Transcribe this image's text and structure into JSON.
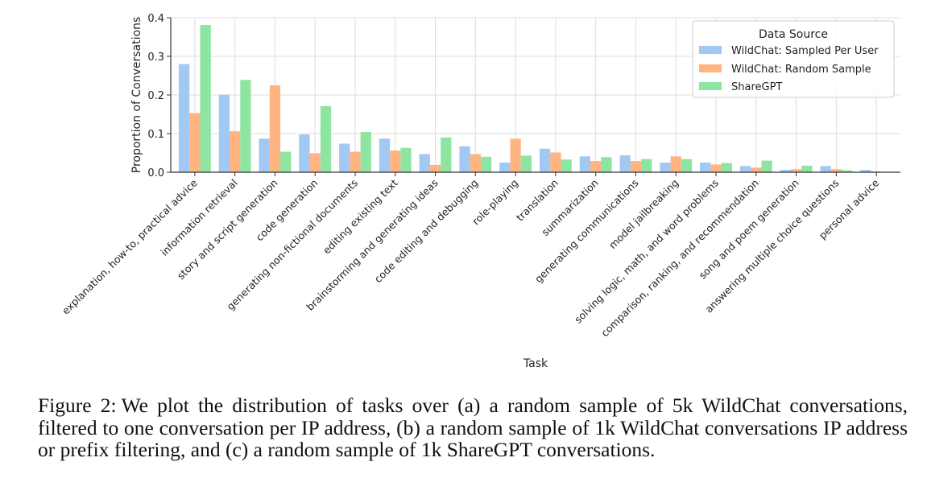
{
  "chart_data": {
    "type": "bar",
    "title": "",
    "xlabel": "Task",
    "ylabel": "Proportion of Conversations",
    "ylim": [
      0,
      0.4
    ],
    "yticks": [
      "0.0",
      "0.1",
      "0.2",
      "0.3",
      "0.4"
    ],
    "grid": true,
    "legend_title": "Data Source",
    "legend_position": "top-right",
    "categories": [
      "explanation, how-to, practical advice",
      "information retrieval",
      "story and script generation",
      "code generation",
      "generating non-fictional documents",
      "editing existing text",
      "brainstorming and generating ideas",
      "code editing and debugging",
      "role-playing",
      "translation",
      "summarization",
      "generating communications",
      "model jailbreaking",
      "solving logic, math, and word problems",
      "comparison, ranking, and recommendation",
      "song and poem generation",
      "answering multiple choice questions",
      "personal advice"
    ],
    "series": [
      {
        "name": "WildChat: Sampled Per User",
        "color": "#a1c9f4",
        "values": [
          0.28,
          0.201,
          0.087,
          0.098,
          0.074,
          0.087,
          0.047,
          0.067,
          0.025,
          0.061,
          0.041,
          0.044,
          0.025,
          0.025,
          0.016,
          0.006,
          0.016,
          0.006
        ]
      },
      {
        "name": "WildChat: Random Sample",
        "color": "#ffb482",
        "values": [
          0.153,
          0.106,
          0.225,
          0.049,
          0.053,
          0.056,
          0.019,
          0.047,
          0.087,
          0.051,
          0.029,
          0.029,
          0.041,
          0.02,
          0.012,
          0.008,
          0.008,
          0.002
        ]
      },
      {
        "name": "ShareGPT",
        "color": "#8de5a1",
        "values": [
          0.381,
          0.239,
          0.053,
          0.171,
          0.104,
          0.063,
          0.09,
          0.04,
          0.043,
          0.033,
          0.039,
          0.034,
          0.034,
          0.024,
          0.03,
          0.017,
          0.005,
          0.001
        ]
      }
    ]
  },
  "caption": {
    "label": "Figure 2:",
    "text": "We plot the distribution of tasks over (a) a random sample of 5k WildChat conversations, filtered to one conversation per IP address, (b) a random sample of 1k WildChat conversations IP address or prefix filtering, and (c) a random sample of 1k ShareGPT conversations."
  }
}
